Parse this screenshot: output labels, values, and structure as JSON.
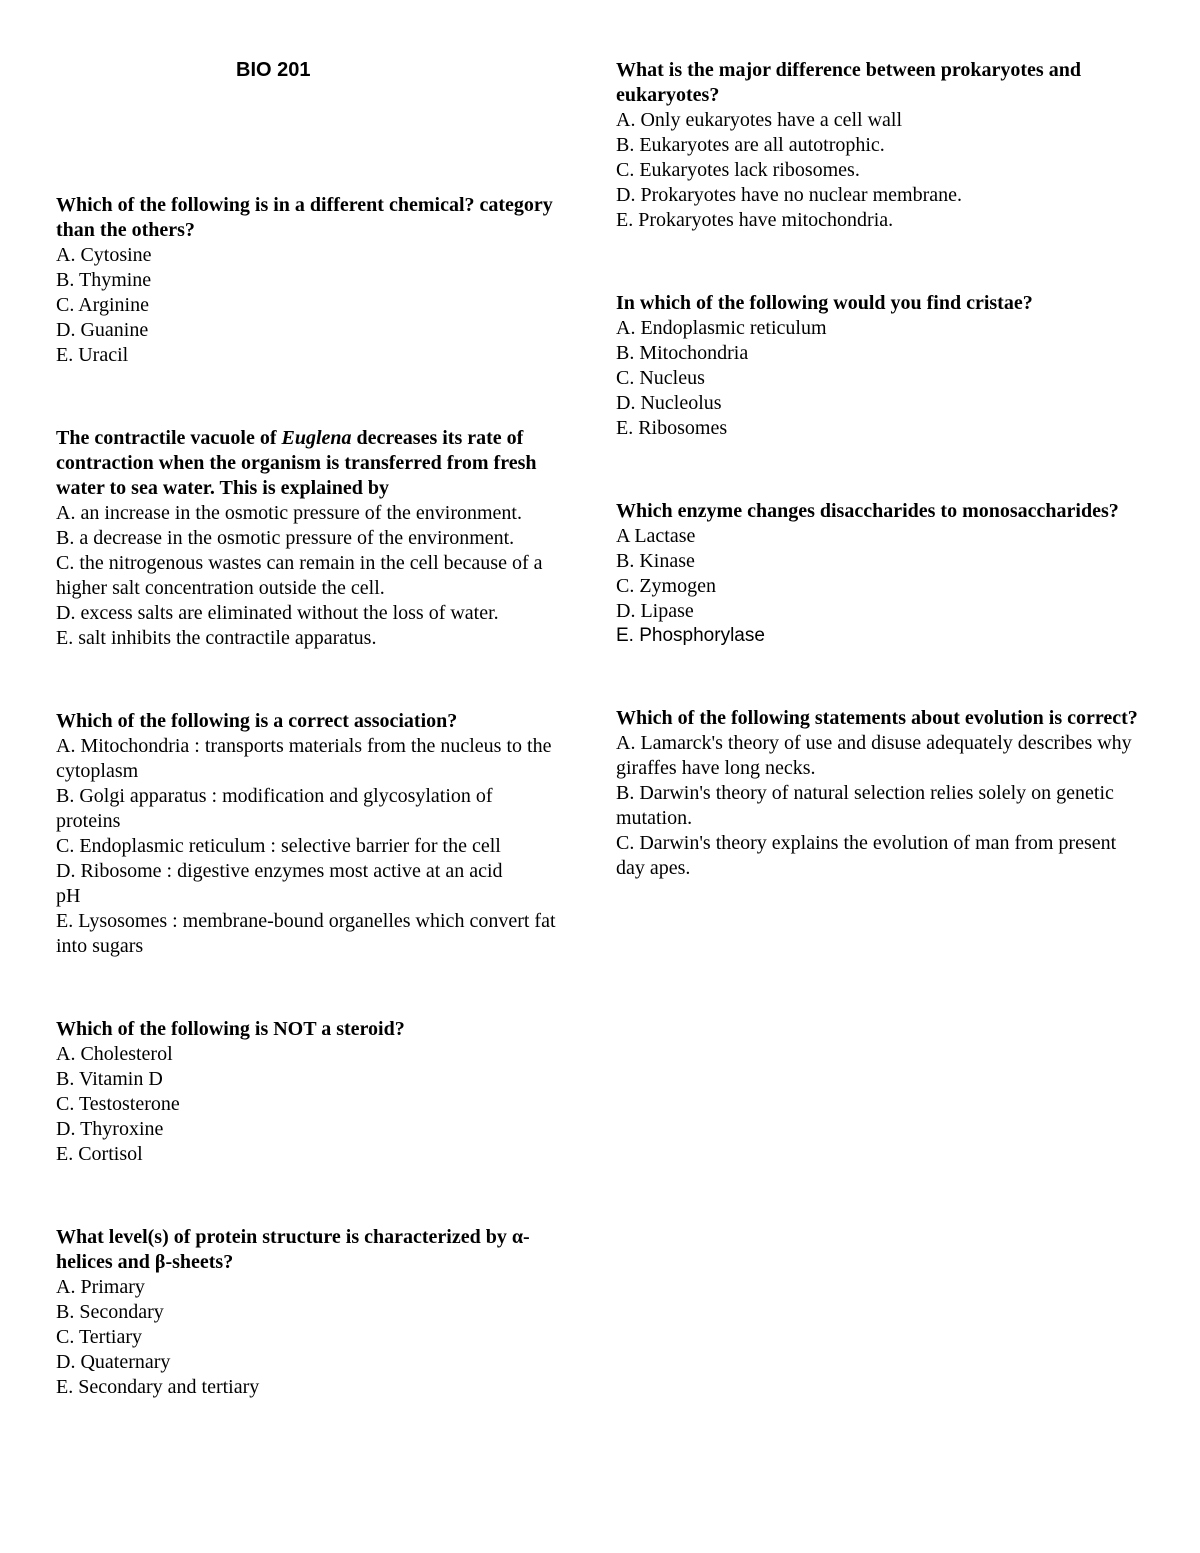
{
  "course": "BIO 201",
  "questions": [
    {
      "id": "q1",
      "prompt_html": "Which of the following is in a different chemical? category than the others?",
      "options": [
        "A. Cytosine",
        "B. Thymine",
        "C. Arginine",
        "D. Guanine",
        "E. Uracil"
      ]
    },
    {
      "id": "q2",
      "prompt_html": "The contractile vacuole of <span class=\"italic\">Euglena</span> decreases its rate of<br>contraction when the organism is transferred from fresh<br>water to sea water. This is explained by",
      "options": [
        "A. an increase in the osmotic pressure of the environment.",
        "B. a decrease in the osmotic pressure of the environment.",
        "C. the nitrogenous wastes can remain in the cell because of a higher salt concentration outside the cell.",
        "D. excess salts are eliminated without the loss of water.",
        "E. salt inhibits the contractile apparatus."
      ]
    },
    {
      "id": "q3",
      "prompt_html": "Which of the following is a correct association?",
      "options": [
        "A. Mitochondria : transports materials from the nucleus to the cytoplasm",
        "B. Golgi apparatus : modification and glycosylation of<br>proteins",
        "C. Endoplasmic reticulum : selective barrier for the cell",
        "D. Ribosome : digestive enzymes most active at an acid<br>pH",
        "E. Lysosomes : membrane-bound organelles which convert fat into sugars"
      ]
    },
    {
      "id": "q4",
      "prompt_html": "Which of the following is NOT a steroid?",
      "options": [
        "A. Cholesterol",
        "B. Vitamin D",
        "C. Testosterone",
        "D. Thyroxine",
        "E. Cortisol"
      ],
      "allow_break": true
    },
    {
      "id": "q5",
      "prompt_html": "What level(s) of protein structure is characterized by <span class=\"greek\">&alpha;</span>-<br>helices and <span class=\"greek\">&beta;</span>-sheets?",
      "options": [
        "A. Primary",
        "B. Secondary",
        "C. Tertiary",
        "D. Quaternary",
        "E. Secondary and tertiary"
      ]
    },
    {
      "id": "q6",
      "prompt_html": "What is the major difference between prokaryotes and<br>eukaryotes?",
      "options": [
        "A. Only eukaryotes have a cell wall",
        "B. Eukaryotes are all autotrophic.",
        "C. Eukaryotes lack ribosomes.",
        "D. Prokaryotes have no nuclear membrane.",
        "E. Prokaryotes have mitochondria."
      ]
    },
    {
      "id": "q7",
      "prompt_html": "In which of the following would you find cristae?",
      "options": [
        "A. Endoplasmic reticulum",
        "B. Mitochondria",
        "C. Nucleus",
        "D. Nucleolus",
        "E. Ribosomes"
      ]
    },
    {
      "id": "q8",
      "prompt_html": "Which enzyme changes disaccharides to monosaccharides?",
      "options": [
        "A Lactase",
        "B. Kinase",
        "C. Zymogen",
        "D. Lipase",
        "E. Phosphorylase"
      ],
      "option_classes": {
        "4": "sans"
      }
    },
    {
      "id": "q9",
      "prompt_html": "Which of the following statements about evolution is correct?",
      "options": [
        "A. Lamarck's theory of use and disuse adequately describes why giraffes have long necks.",
        "B. Darwin's theory of natural selection relies solely on genetic mutation.",
        "C. Darwin's theory explains the evolution of man from present day apes."
      ]
    }
  ]
}
